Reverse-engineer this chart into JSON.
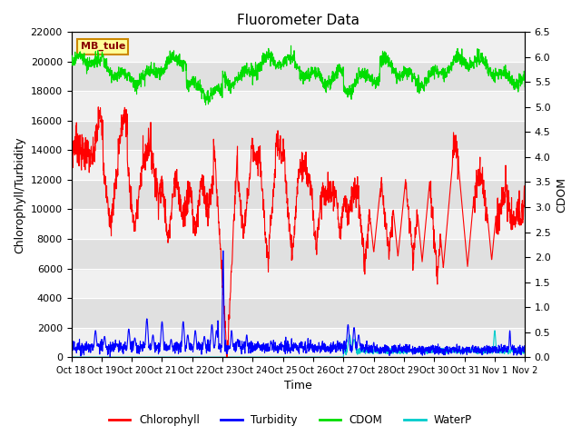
{
  "title": "Fluorometer Data",
  "xlabel": "Time",
  "ylabel_left": "Chlorophyll/Turbidity",
  "ylabel_right": "CDOM",
  "ylim_left": [
    0,
    22000
  ],
  "ylim_right": [
    0.0,
    6.5
  ],
  "yticks_left": [
    0,
    2000,
    4000,
    6000,
    8000,
    10000,
    12000,
    14000,
    16000,
    18000,
    20000,
    22000
  ],
  "yticks_right": [
    0.0,
    0.5,
    1.0,
    1.5,
    2.0,
    2.5,
    3.0,
    3.5,
    4.0,
    4.5,
    5.0,
    5.5,
    6.0,
    6.5
  ],
  "xtick_labels": [
    "Oct 18",
    "Oct 19",
    "Oct 20",
    "Oct 21",
    "Oct 22",
    "Oct 23",
    "Oct 24",
    "Oct 25",
    "Oct 26",
    "Oct 27",
    "Oct 28",
    "Oct 29",
    "Oct 30",
    "Oct 31",
    "Nov 1",
    "Nov 2"
  ],
  "station_label": "MB_tule",
  "colors": {
    "chlorophyll": "#ff0000",
    "turbidity": "#0000ff",
    "cdom": "#00dd00",
    "waterp": "#00cccc",
    "bg_light": "#f0f0f0",
    "bg_dark": "#e0e0e0"
  },
  "legend_entries": [
    "Chlorophyll",
    "Turbidity",
    "CDOM",
    "WaterP"
  ],
  "figsize": [
    6.4,
    4.8
  ],
  "dpi": 100
}
